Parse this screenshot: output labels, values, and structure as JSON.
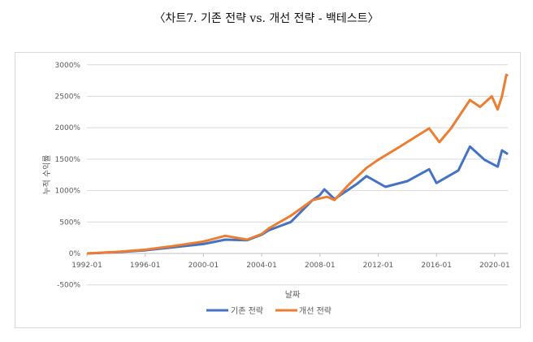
{
  "chart_data": {
    "type": "line",
    "title": "〈차트7. 기존 전략 vs. 개선 전략 - 백테스트〉",
    "xlabel": "날짜",
    "ylabel": "누적 수익률",
    "ylim": [
      -500,
      3000
    ],
    "yticks": [
      "3000%",
      "2500%",
      "2000%",
      "1500%",
      "1000%",
      "500%",
      "0%",
      "-500%"
    ],
    "ytick_values": [
      3000,
      2500,
      2000,
      1500,
      1000,
      500,
      0,
      -500
    ],
    "xticks": [
      "1992-01",
      "1996-01",
      "2000-01",
      "2004-01",
      "2008-01",
      "2012-01",
      "2016-01",
      "2020-01"
    ],
    "xlim": [
      1992.0,
      2020.9
    ],
    "grid": true,
    "legend_position": "bottom",
    "series": [
      {
        "name": "기존 전략",
        "color": "#4472C4",
        "x": [
          1992.0,
          1994.0,
          1996.0,
          1998.0,
          2000.0,
          2001.5,
          2003.0,
          2004.0,
          2004.5,
          2006.0,
          2007.5,
          2008.0,
          2008.3,
          2009.0,
          2010.5,
          2011.2,
          2012.5,
          2014.0,
          2015.5,
          2016.0,
          2017.5,
          2018.3,
          2019.3,
          2020.2,
          2020.5,
          2020.9
        ],
        "y": [
          0,
          20,
          50,
          100,
          150,
          220,
          210,
          300,
          370,
          500,
          850,
          930,
          1020,
          865,
          1100,
          1230,
          1060,
          1150,
          1340,
          1120,
          1320,
          1700,
          1490,
          1380,
          1640,
          1580
        ]
      },
      {
        "name": "개선 전략",
        "color": "#ED7D31",
        "x": [
          1992.0,
          1994.0,
          1996.0,
          1998.0,
          2000.0,
          2001.5,
          2003.0,
          2004.0,
          2004.5,
          2006.0,
          2007.5,
          2008.5,
          2009.0,
          2010.0,
          2011.2,
          2012.0,
          2013.5,
          2015.5,
          2016.2,
          2017.0,
          2018.3,
          2019.0,
          2019.8,
          2020.2,
          2020.5,
          2020.8,
          2020.9
        ],
        "y": [
          0,
          25,
          60,
          120,
          190,
          280,
          220,
          310,
          400,
          600,
          850,
          900,
          850,
          1100,
          1360,
          1490,
          1700,
          1990,
          1770,
          1990,
          2440,
          2330,
          2500,
          2290,
          2500,
          2840,
          2820
        ]
      }
    ]
  }
}
